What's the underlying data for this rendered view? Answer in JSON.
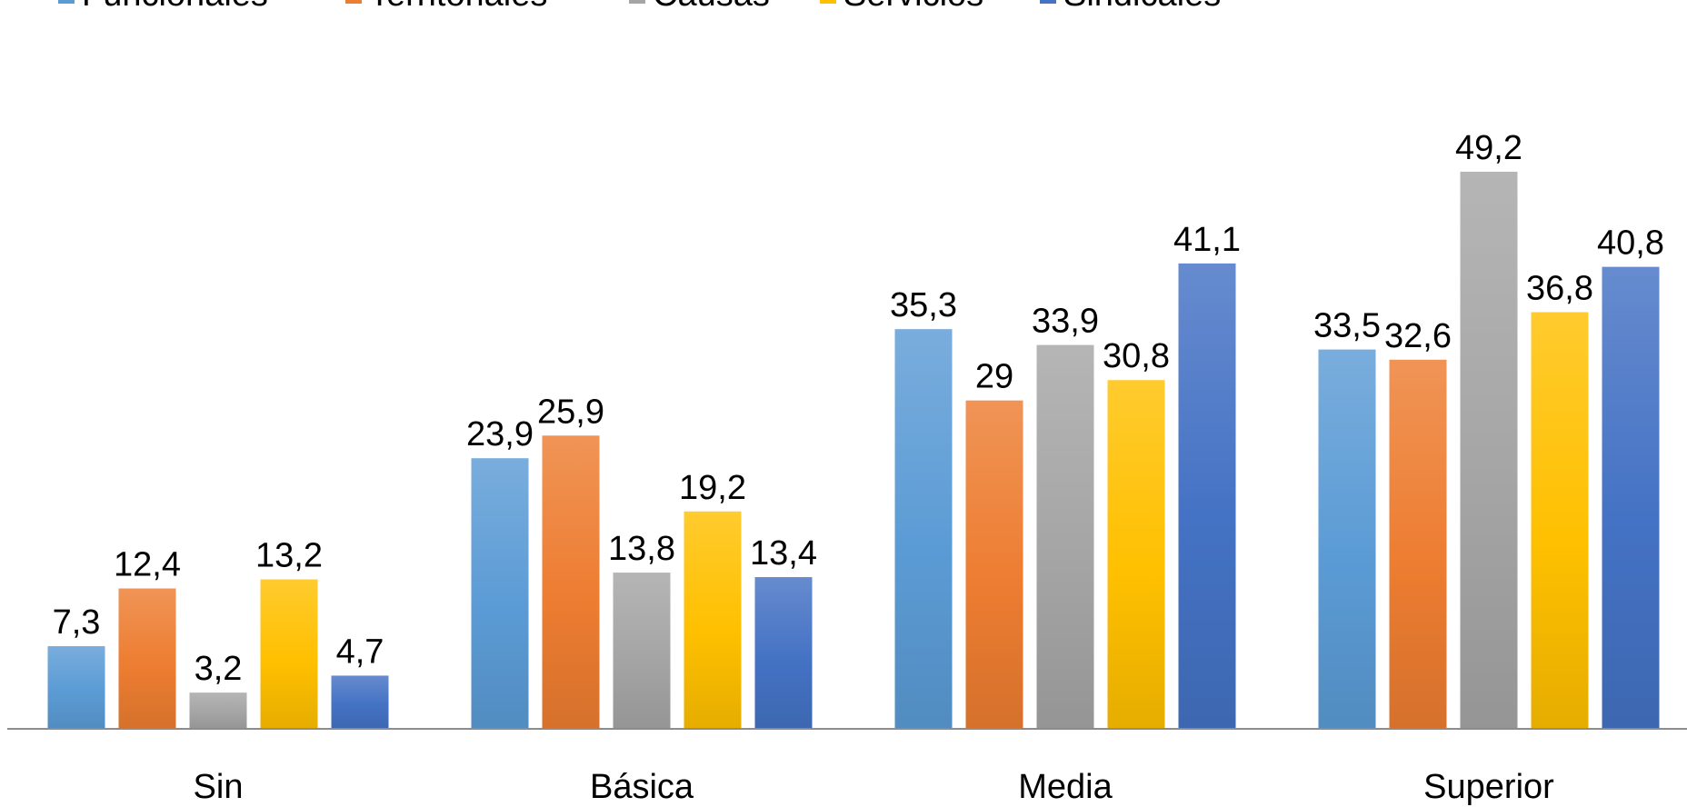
{
  "chart_data": {
    "type": "bar",
    "categories": [
      "Sin",
      "Básica",
      "Media",
      "Superior"
    ],
    "series": [
      {
        "name": "Funcionales",
        "color": "#5b9bd5",
        "values": [
          7.3,
          23.9,
          35.3,
          33.5
        ],
        "labels": [
          "7,3",
          "23,9",
          "35,3",
          "33,5"
        ]
      },
      {
        "name": "Territoriales",
        "color": "#ed7d31",
        "values": [
          12.4,
          25.9,
          29,
          32.6
        ],
        "labels": [
          "12,4",
          "25,9",
          "29",
          "32,6"
        ]
      },
      {
        "name": "Causas",
        "color": "#a5a5a5",
        "values": [
          3.2,
          13.8,
          33.9,
          49.2
        ],
        "labels": [
          "3,2",
          "13,8",
          "33,9",
          "49,2"
        ]
      },
      {
        "name": "Servicios",
        "color": "#ffc000",
        "values": [
          13.2,
          19.2,
          30.8,
          36.8
        ],
        "labels": [
          "13,2",
          "19,2",
          "30,8",
          "36,8"
        ]
      },
      {
        "name": "Sindicales",
        "color": "#4472c4",
        "values": [
          4.7,
          13.4,
          41.1,
          40.8
        ],
        "labels": [
          "4,7",
          "13,4",
          "41,1",
          "40,8"
        ]
      }
    ],
    "ylim": [
      0,
      54
    ],
    "legend_position": "top",
    "grid": false,
    "gradient_fill": true
  }
}
